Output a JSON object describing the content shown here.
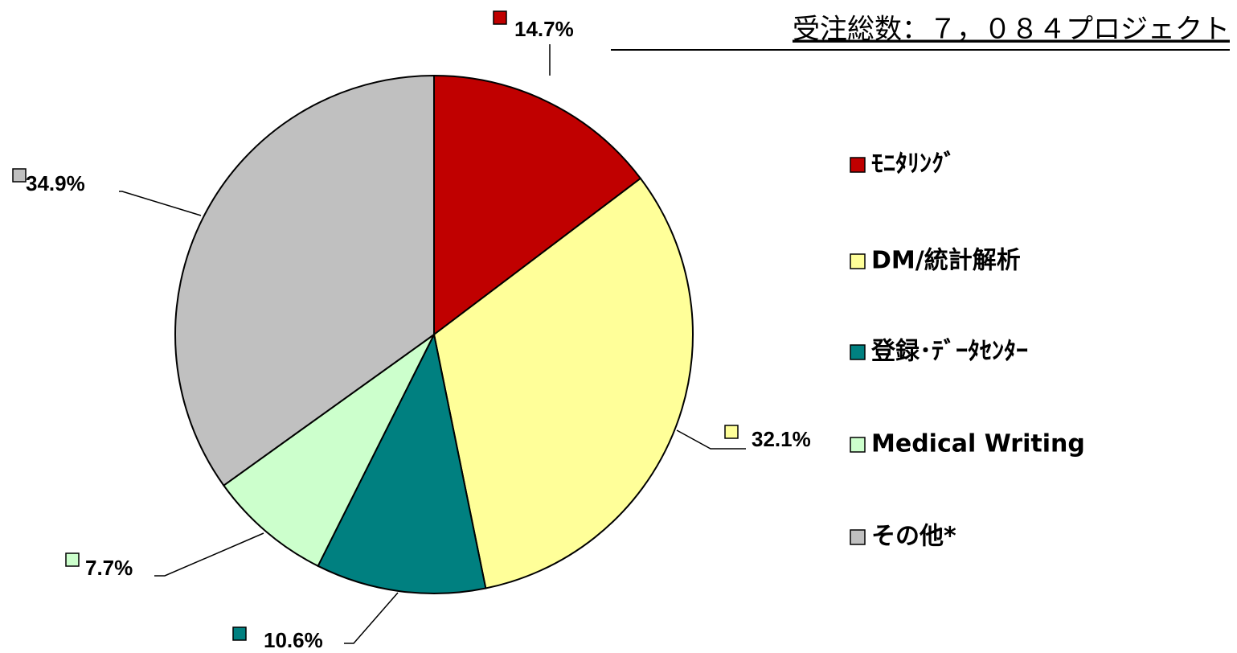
{
  "chart_data": {
    "type": "pie",
    "title": "受注総数：７，０８４プロジェクト",
    "categories": [
      "ﾓﾆﾀﾘﾝｸﾞ",
      "DM/統計解析",
      "登録･ﾃﾞｰﾀｾﾝﾀｰ",
      "Medical Writing",
      "その他*"
    ],
    "values": [
      14.7,
      32.1,
      10.6,
      7.7,
      34.9
    ],
    "value_labels": [
      "14.7%",
      "32.1%",
      "10.6%",
      "7.7%",
      "34.9%"
    ],
    "colors": [
      "#c00000",
      "#ffff99",
      "#008080",
      "#ccffcc",
      "#c0c0c0"
    ],
    "legend": "right"
  }
}
